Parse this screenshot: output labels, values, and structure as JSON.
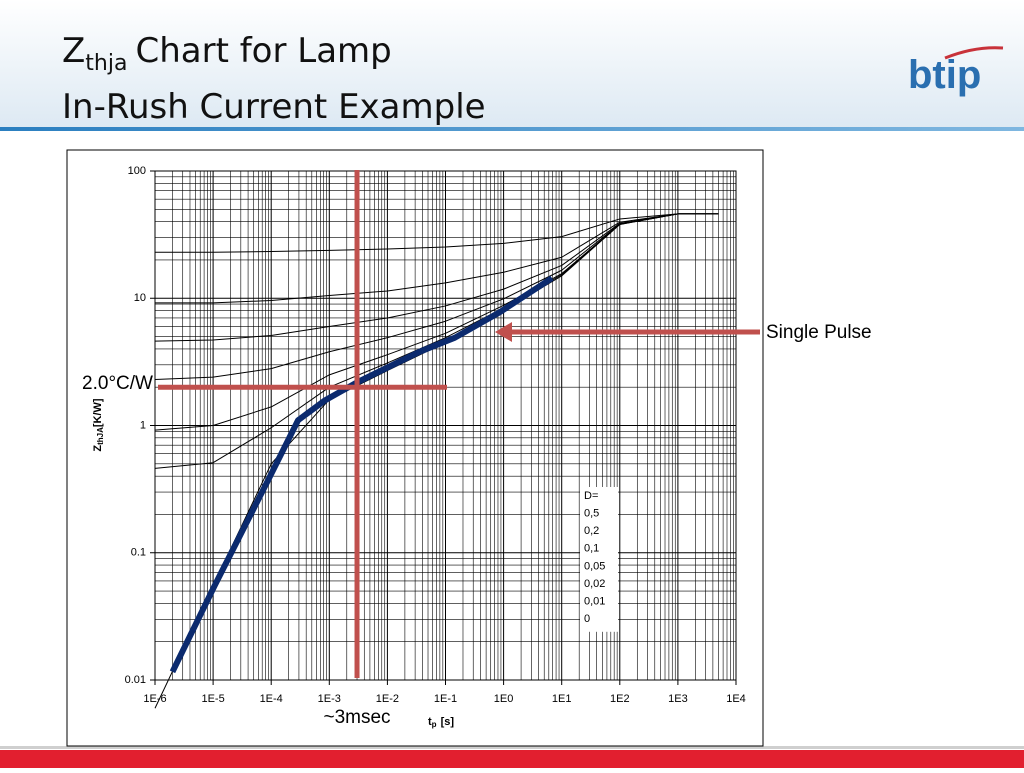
{
  "slide": {
    "title_main": "Z",
    "title_sub": "thja",
    "title_rest": "Chart for Lamp",
    "title_line2": "In-Rush Current Example",
    "logo": "btip"
  },
  "chart_data": {
    "type": "line",
    "x_scale": "log",
    "y_scale": "log",
    "grid": true,
    "minor_grid": true,
    "xlim": [
      1e-06,
      10000
    ],
    "ylim": [
      0.01,
      100
    ],
    "xticks": [
      {
        "value": 1e-06,
        "label": "1E-6"
      },
      {
        "value": 1e-05,
        "label": "1E-5"
      },
      {
        "value": 0.0001,
        "label": "1E-4"
      },
      {
        "value": 0.001,
        "label": "1E-3"
      },
      {
        "value": 0.01,
        "label": "1E-2"
      },
      {
        "value": 0.1,
        "label": "1E-1"
      },
      {
        "value": 1,
        "label": "1E0"
      },
      {
        "value": 10,
        "label": "1E1"
      },
      {
        "value": 100,
        "label": "1E2"
      },
      {
        "value": 1000,
        "label": "1E3"
      },
      {
        "value": 10000,
        "label": "1E4"
      }
    ],
    "yticks": [
      0.01,
      0.1,
      1,
      10,
      100
    ],
    "x_label": {
      "main": "t",
      "sub": "p",
      "rest": "[s]"
    },
    "y_label": {
      "main": "Z",
      "sub": "thJA",
      "rest": "[K/W]"
    },
    "legend_title": "D=",
    "x": [
      1e-06,
      1e-05,
      0.0001,
      0.001,
      0.01,
      0.1,
      1,
      10,
      100,
      1000,
      5000
    ],
    "series": [
      {
        "name": "0,5",
        "color": "#000000",
        "values": [
          23.0,
          23.0,
          23.3,
          23.8,
          24.4,
          25.3,
          27,
          30.5,
          42,
          46,
          46
        ]
      },
      {
        "name": "0,2",
        "color": "#000000",
        "values": [
          9.2,
          9.2,
          9.6,
          10.5,
          11.4,
          13.2,
          16,
          21,
          39.6,
          46,
          46
        ]
      },
      {
        "name": "0,1",
        "color": "#000000",
        "values": [
          4.6,
          4.7,
          5.1,
          6.0,
          7.0,
          8.7,
          11.8,
          18.1,
          38.8,
          46,
          46
        ]
      },
      {
        "name": "0,05",
        "color": "#000000",
        "values": [
          2.3,
          2.4,
          2.8,
          3.8,
          4.9,
          6.6,
          9.9,
          16.6,
          38.4,
          46,
          46
        ]
      },
      {
        "name": "0,02",
        "color": "#000000",
        "values": [
          0.92,
          1.0,
          1.4,
          2.5,
          3.6,
          5.3,
          8.8,
          15.6,
          38.2,
          46,
          46
        ]
      },
      {
        "name": "0,01",
        "color": "#000000",
        "values": [
          0.46,
          0.51,
          0.96,
          2.0,
          3.1,
          4.9,
          8.4,
          15.3,
          38.1,
          46,
          46
        ]
      },
      {
        "name": "0",
        "color": "#000000",
        "values": [
          0.006,
          0.055,
          0.5,
          1.6,
          2.7,
          4.5,
          8,
          15,
          38,
          46,
          46
        ]
      }
    ],
    "highlight": {
      "color": "#0b2a6e",
      "x": [
        2e-06,
        1.08e-05,
        8.8e-05,
        0.00029,
        0.00085,
        0.0031,
        0.036,
        0.145,
        0.87,
        6.8
      ],
      "values": [
        0.0116,
        0.056,
        0.37,
        1.1,
        1.58,
        2.2,
        3.8,
        4.9,
        7.8,
        14.4
      ]
    },
    "annotations": [
      {
        "text": "Single Pulse"
      },
      {
        "text": "2.0°C/W",
        "y": 2.0
      },
      {
        "text": "~3msec",
        "x": 0.003
      }
    ]
  }
}
